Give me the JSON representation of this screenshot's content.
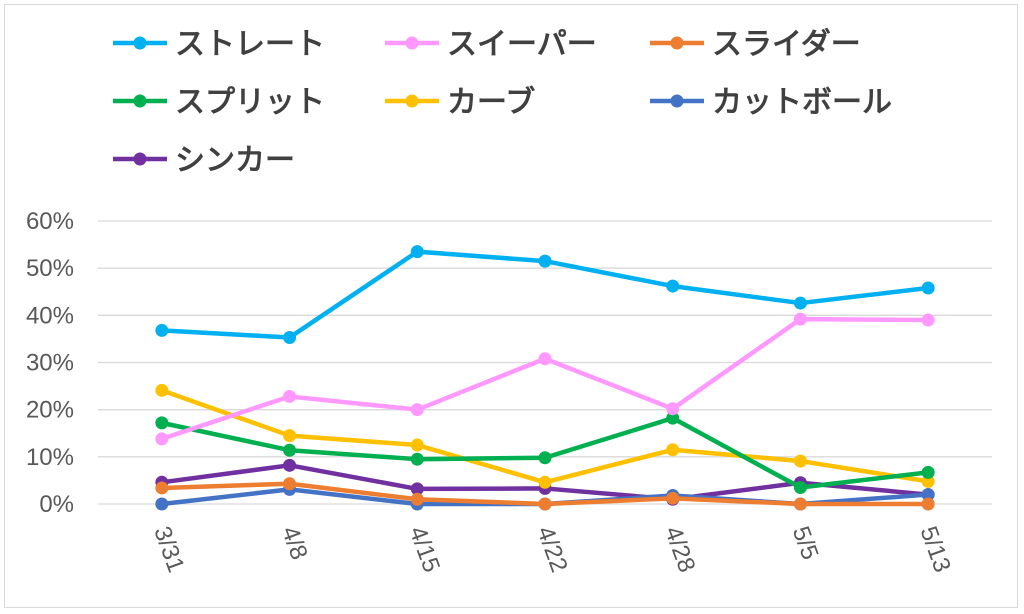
{
  "chart_data": {
    "type": "line",
    "categories": [
      "3/31",
      "4/8",
      "4/15",
      "4/22",
      "4/28",
      "5/5",
      "5/13"
    ],
    "ylim": [
      0,
      60
    ],
    "yticks": [
      "0%",
      "10%",
      "20%",
      "30%",
      "40%",
      "50%",
      "60%"
    ],
    "grid": true,
    "legend_position": "top",
    "series": [
      {
        "name": "ストレート",
        "color": "#00b0f0",
        "values": [
          36.8,
          35.3,
          53.5,
          51.5,
          46.2,
          42.6,
          45.8
        ]
      },
      {
        "name": "スイーパー",
        "color": "#ff99ff",
        "values": [
          13.8,
          22.8,
          20.0,
          30.8,
          20.2,
          39.2,
          39.0
        ]
      },
      {
        "name": "スライダー",
        "color": "#ed7d31",
        "values": [
          3.4,
          4.3,
          1.0,
          0.0,
          1.2,
          0.0,
          0.0
        ]
      },
      {
        "name": "スプリット",
        "color": "#00b050",
        "values": [
          17.2,
          11.4,
          9.5,
          9.8,
          18.2,
          3.5,
          6.7
        ]
      },
      {
        "name": "カーブ",
        "color": "#ffc000",
        "values": [
          24.1,
          14.5,
          12.5,
          4.6,
          11.5,
          9.1,
          4.8
        ]
      },
      {
        "name": "カットボール",
        "color": "#4472c4",
        "values": [
          0.0,
          3.1,
          0.0,
          0.0,
          1.8,
          0.0,
          2.0
        ]
      },
      {
        "name": "シンカー",
        "color": "#7030a0",
        "values": [
          4.6,
          8.2,
          3.2,
          3.3,
          1.0,
          4.5,
          2.0
        ]
      }
    ]
  }
}
